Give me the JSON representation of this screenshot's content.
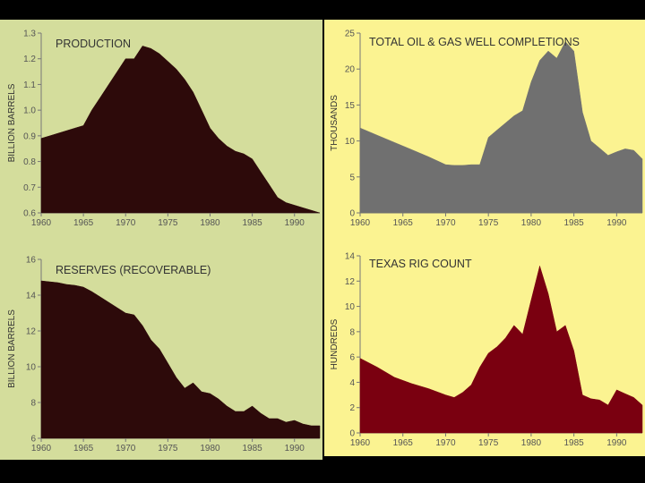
{
  "chart_data": [
    {
      "type": "area",
      "title": "PRODUCTION",
      "ylabel": "BILLION BARRELS",
      "xlabel": "",
      "color": "#2d0a0a",
      "background": "#d4dd9c",
      "xlim": [
        1960,
        1993
      ],
      "ylim": [
        0.6,
        1.3
      ],
      "xticks": [
        1960,
        1965,
        1970,
        1975,
        1980,
        1985,
        1990
      ],
      "yticks": [
        0.6,
        0.7,
        0.8,
        0.9,
        1.0,
        1.1,
        1.2,
        1.3
      ],
      "ytick_labels": [
        "0.6",
        "0.7",
        "0.8",
        "0.9",
        "1.0",
        "1.1",
        "1.2",
        "1.3"
      ],
      "x": [
        1960,
        1961,
        1962,
        1963,
        1964,
        1965,
        1966,
        1967,
        1968,
        1969,
        1970,
        1971,
        1972,
        1973,
        1974,
        1975,
        1976,
        1977,
        1978,
        1979,
        1980,
        1981,
        1982,
        1983,
        1984,
        1985,
        1986,
        1987,
        1988,
        1989,
        1990,
        1991,
        1992,
        1993
      ],
      "y": [
        0.89,
        0.9,
        0.91,
        0.92,
        0.93,
        0.94,
        1.0,
        1.05,
        1.1,
        1.15,
        1.2,
        1.2,
        1.25,
        1.24,
        1.22,
        1.19,
        1.16,
        1.12,
        1.07,
        1.0,
        0.93,
        0.89,
        0.86,
        0.84,
        0.83,
        0.81,
        0.76,
        0.71,
        0.66,
        0.64,
        0.63,
        0.62,
        0.61,
        0.6
      ]
    },
    {
      "type": "area",
      "title": "RESERVES (RECOVERABLE)",
      "ylabel": "BILLION BARRELS",
      "xlabel": "",
      "color": "#2d0a0a",
      "background": "#d4dd9c",
      "xlim": [
        1960,
        1993
      ],
      "ylim": [
        6,
        16
      ],
      "xticks": [
        1960,
        1965,
        1970,
        1975,
        1980,
        1985,
        1990
      ],
      "yticks": [
        6,
        8,
        10,
        12,
        14,
        16
      ],
      "ytick_labels": [
        "6",
        "8",
        "10",
        "12",
        "14",
        "16"
      ],
      "x": [
        1960,
        1961,
        1962,
        1963,
        1964,
        1965,
        1966,
        1967,
        1968,
        1969,
        1970,
        1971,
        1972,
        1973,
        1974,
        1975,
        1976,
        1977,
        1978,
        1979,
        1980,
        1981,
        1982,
        1983,
        1984,
        1985,
        1986,
        1987,
        1988,
        1989,
        1990,
        1991,
        1992,
        1993
      ],
      "y": [
        14.8,
        14.75,
        14.7,
        14.6,
        14.55,
        14.45,
        14.2,
        13.9,
        13.6,
        13.3,
        13.0,
        12.9,
        12.3,
        11.5,
        11.0,
        10.2,
        9.4,
        8.8,
        9.1,
        8.6,
        8.5,
        8.2,
        7.8,
        7.5,
        7.5,
        7.8,
        7.4,
        7.1,
        7.1,
        6.9,
        7.0,
        6.8,
        6.7,
        6.7
      ]
    },
    {
      "type": "area",
      "title": "TOTAL OIL & GAS WELL COMPLETIONS",
      "ylabel": "THOUSANDS",
      "xlabel": "",
      "color": "#707070",
      "background": "#fbf391",
      "xlim": [
        1960,
        1993
      ],
      "ylim": [
        0,
        25
      ],
      "xticks": [
        1960,
        1965,
        1970,
        1975,
        1980,
        1985,
        1990
      ],
      "yticks": [
        0,
        5,
        10,
        15,
        20,
        25
      ],
      "ytick_labels": [
        "0",
        "5",
        "10",
        "15",
        "20",
        "25"
      ],
      "x": [
        1960,
        1962,
        1964,
        1966,
        1968,
        1970,
        1971,
        1972,
        1973,
        1974,
        1975,
        1976,
        1977,
        1978,
        1979,
        1980,
        1981,
        1982,
        1983,
        1984,
        1985,
        1986,
        1987,
        1988,
        1989,
        1990,
        1991,
        1992,
        1993
      ],
      "y": [
        11.8,
        10.8,
        9.8,
        8.8,
        7.8,
        6.7,
        6.6,
        6.6,
        6.7,
        6.7,
        10.5,
        11.5,
        12.5,
        13.5,
        14.2,
        18.2,
        21.2,
        22.5,
        21.5,
        23.8,
        22.5,
        14.0,
        10.0,
        9.0,
        8.0,
        8.5,
        8.9,
        8.7,
        7.5
      ]
    },
    {
      "type": "area",
      "title": "TEXAS RIG COUNT",
      "ylabel": "HUNDREDS",
      "xlabel": "",
      "color": "#7a0010",
      "background": "#fbf391",
      "xlim": [
        1960,
        1993
      ],
      "ylim": [
        0,
        14
      ],
      "xticks": [
        1960,
        1965,
        1970,
        1975,
        1980,
        1985,
        1990
      ],
      "yticks": [
        0,
        2,
        4,
        6,
        8,
        10,
        12,
        14
      ],
      "ytick_labels": [
        "0",
        "2",
        "4",
        "6",
        "8",
        "10",
        "12",
        "14"
      ],
      "x": [
        1960,
        1962,
        1964,
        1966,
        1968,
        1970,
        1971,
        1972,
        1973,
        1974,
        1975,
        1976,
        1977,
        1978,
        1979,
        1980,
        1981,
        1982,
        1983,
        1984,
        1985,
        1986,
        1987,
        1988,
        1989,
        1990,
        1991,
        1992,
        1993
      ],
      "y": [
        5.9,
        5.2,
        4.4,
        3.9,
        3.5,
        3.0,
        2.8,
        3.2,
        3.8,
        5.2,
        6.3,
        6.8,
        7.5,
        8.5,
        7.8,
        10.5,
        13.2,
        11.0,
        8.0,
        8.5,
        6.5,
        3.0,
        2.7,
        2.6,
        2.2,
        3.4,
        3.1,
        2.8,
        2.2
      ]
    }
  ]
}
